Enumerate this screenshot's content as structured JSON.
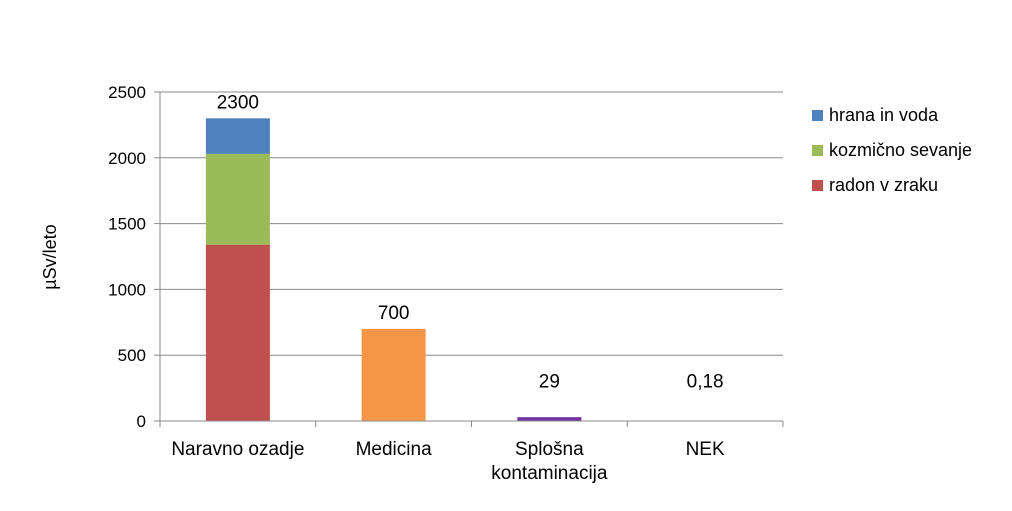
{
  "chart_data": {
    "type": "bar",
    "stacked": true,
    "ylabel": "µSv/leto",
    "ylim": [
      0,
      2500
    ],
    "yticks": [
      0,
      500,
      1000,
      1500,
      2000,
      2500
    ],
    "grid": true,
    "legend_position": "right",
    "categories": [
      {
        "label_lines": [
          "Naravno ozadje"
        ]
      },
      {
        "label_lines": [
          "Medicina"
        ]
      },
      {
        "label_lines": [
          "Splošna",
          "kontaminacija"
        ]
      },
      {
        "label_lines": [
          "NEK"
        ]
      }
    ],
    "stack_segments": [
      {
        "category": 0,
        "name": "radon v zraku",
        "value": 1340,
        "color": "#C0504D"
      },
      {
        "category": 0,
        "name": "kozmično sevanje",
        "value": 690,
        "color": "#9BBB59"
      },
      {
        "category": 0,
        "name": "hrana in voda",
        "value": 270,
        "color": "#4F81BD"
      },
      {
        "category": 1,
        "value": 700,
        "color": "#F79646"
      },
      {
        "category": 2,
        "value": 29,
        "color": "#7030A0"
      },
      {
        "category": 3,
        "value": 0.18,
        "color": "#4F81BD"
      }
    ],
    "data_labels": [
      "2300",
      "700",
      "29",
      "0,18"
    ],
    "legend": [
      {
        "name": "hrana in voda",
        "color": "#4F81BD"
      },
      {
        "name": "kozmično sevanje",
        "color": "#9BBB59"
      },
      {
        "name": "radon v zraku",
        "color": "#C0504D"
      }
    ]
  }
}
